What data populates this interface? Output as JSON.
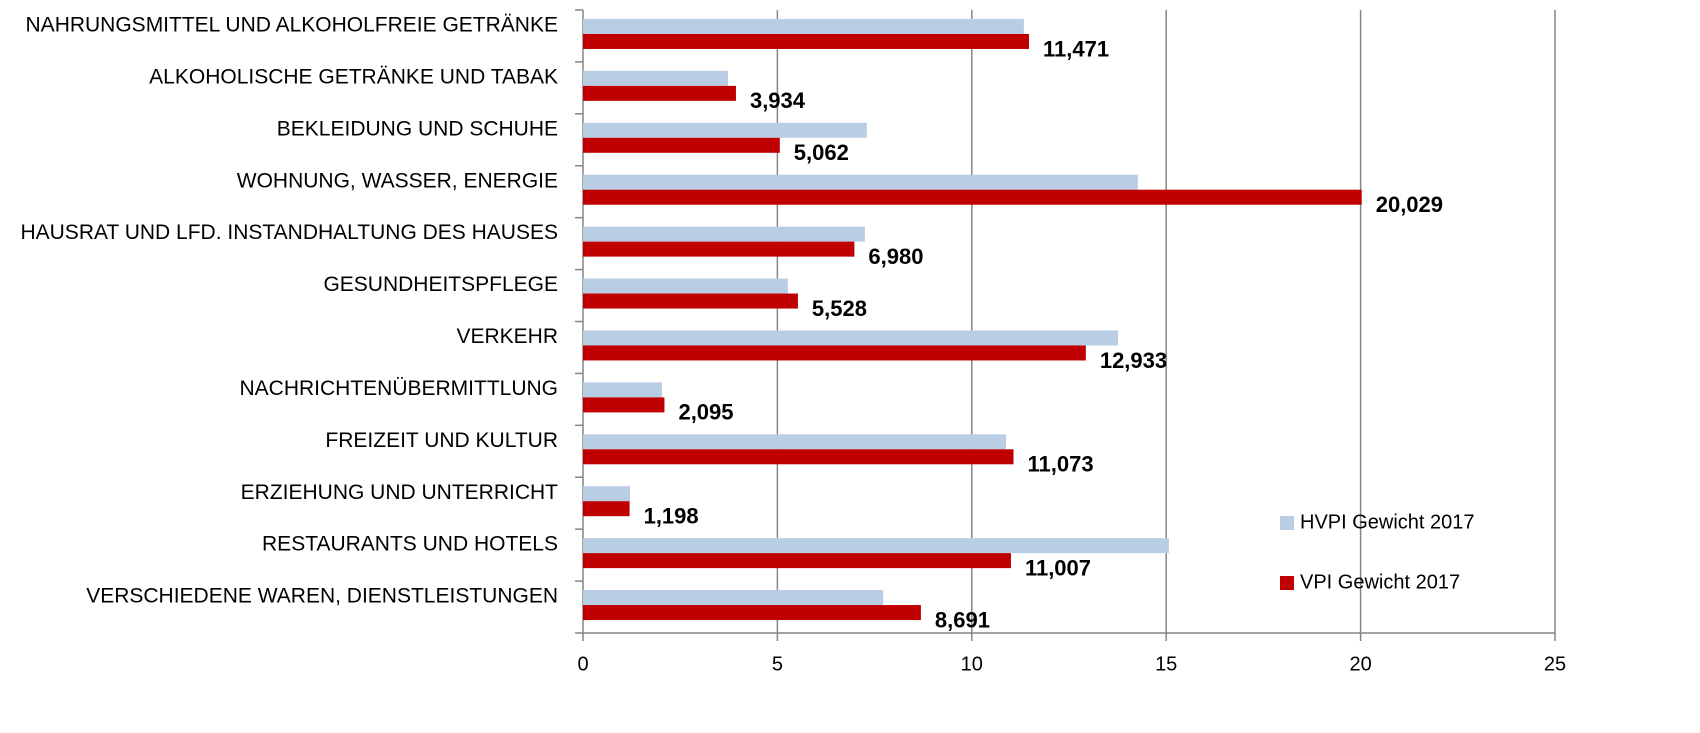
{
  "chart_data": {
    "type": "bar",
    "orientation": "horizontal",
    "categories": [
      "NAHRUNGSMITTEL UND ALKOHOLFREIE GETRÄNKE",
      "ALKOHOLISCHE GETRÄNKE UND TABAK",
      "BEKLEIDUNG UND SCHUHE",
      "WOHNUNG, WASSER, ENERGIE",
      "HAUSRAT UND LFD. INSTANDHALTUNG DES HAUSES",
      "GESUNDHEITSPFLEGE",
      "VERKEHR",
      "NACHRICHTENÜBERMITTLUNG",
      "FREIZEIT UND KULTUR",
      "ERZIEHUNG UND UNTERRICHT",
      "RESTAURANTS UND HOTELS",
      "VERSCHIEDENE WAREN, DIENSTLEISTUNGEN"
    ],
    "series": [
      {
        "name": "HVPI Gewicht 2017",
        "color": "#b9cde5",
        "values": [
          11.34,
          3.73,
          7.3,
          14.27,
          7.25,
          5.27,
          13.76,
          2.03,
          10.88,
          1.21,
          15.07,
          7.72
        ]
      },
      {
        "name": "VPI Gewicht 2017",
        "color": "#c00000",
        "values": [
          11.471,
          3.934,
          5.062,
          20.029,
          6.98,
          5.528,
          12.933,
          2.095,
          11.073,
          1.198,
          11.007,
          8.691
        ],
        "value_labels": [
          "11,471",
          "3,934",
          "5,062",
          "20,029",
          "6,980",
          "5,528",
          "12,933",
          "2,095",
          "11,073",
          "1,198",
          "11,007",
          "8,691"
        ]
      }
    ],
    "xlim": [
      0,
      25
    ],
    "xticks": [
      0,
      5,
      10,
      15,
      20,
      25
    ],
    "grid": true,
    "legend": "right"
  }
}
